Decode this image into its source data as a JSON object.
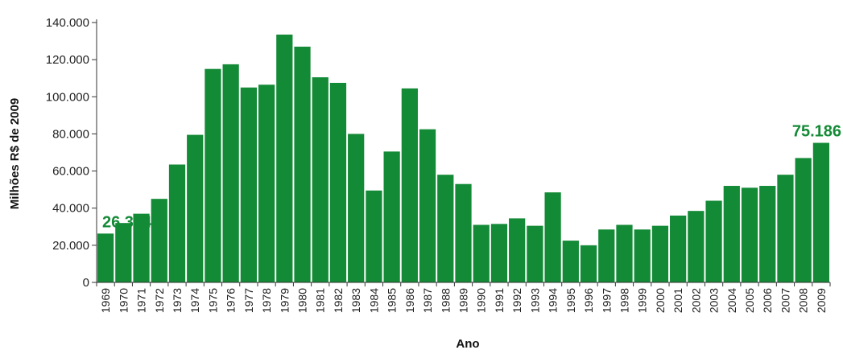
{
  "chart_data": {
    "type": "bar",
    "title": "",
    "xlabel": "Ano",
    "ylabel": "Milhões R$ de 2009",
    "ylim": [
      0,
      140000
    ],
    "yticks": [
      0,
      20000,
      40000,
      60000,
      80000,
      100000,
      120000,
      140000
    ],
    "ytick_labels": [
      "0",
      "20.000",
      "40.000",
      "60.000",
      "80.000",
      "100.000",
      "120.000",
      "140.000"
    ],
    "grid": false,
    "bar_color": "#138a36",
    "annotation_color": "#138a36",
    "categories": [
      "1969",
      "1970",
      "1971",
      "1972",
      "1973",
      "1974",
      "1975",
      "1976",
      "1977",
      "1978",
      "1979",
      "1980",
      "1981",
      "1982",
      "1983",
      "1984",
      "1985",
      "1986",
      "1987",
      "1988",
      "1989",
      "1990",
      "1991",
      "1992",
      "1993",
      "1994",
      "1995",
      "1996",
      "1997",
      "1998",
      "1999",
      "2000",
      "2001",
      "2002",
      "2003",
      "2004",
      "2005",
      "2006",
      "2007",
      "2008",
      "2009"
    ],
    "values": [
      26304,
      32000,
      37000,
      45000,
      63500,
      79500,
      115000,
      117500,
      105000,
      106500,
      133500,
      127000,
      110500,
      107500,
      80000,
      49500,
      70500,
      104500,
      82500,
      58000,
      53000,
      31000,
      31500,
      34500,
      30500,
      48500,
      22500,
      20000,
      28500,
      31000,
      28500,
      30500,
      36000,
      38500,
      44000,
      52000,
      51000,
      52000,
      58000,
      67000,
      75186
    ],
    "annotations": [
      {
        "category": "1969",
        "text": "26.304"
      },
      {
        "category": "2009",
        "text": "75.186"
      }
    ]
  }
}
